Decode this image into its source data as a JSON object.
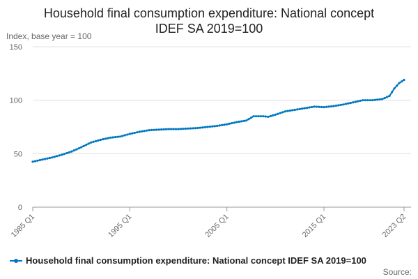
{
  "title_line1": "Household final consumption expenditure: National concept",
  "title_line2": "IDEF SA 2019=100",
  "ylabel": "Index, base year = 100",
  "source": "Source:",
  "legend": "Household final consumption expenditure: National concept IDEF SA 2019=100",
  "colors": {
    "series": "#0078bf",
    "grid": "#e0e0e0",
    "axis": "#999999"
  },
  "chart_data": {
    "type": "line",
    "title": "Household final consumption expenditure: National concept IDEF SA 2019=100",
    "ylabel": "Index, base year = 100",
    "xlabel": "",
    "ylim": [
      0,
      150
    ],
    "yticks": [
      0,
      50,
      100,
      150
    ],
    "xticks": [
      "1985 Q1",
      "1995 Q1",
      "2005 Q1",
      "2015 Q1",
      "2023 Q2"
    ],
    "grid": true,
    "legend_position": "bottom",
    "x_start": "1985 Q1",
    "x_end": "2023 Q2",
    "series": [
      {
        "name": "Household final consumption expenditure: National concept IDEF SA 2019=100",
        "anchors": [
          [
            "1985 Q1",
            42.5
          ],
          [
            "1986 Q1",
            44.5
          ],
          [
            "1987 Q1",
            46.5
          ],
          [
            "1988 Q1",
            49
          ],
          [
            "1989 Q1",
            52
          ],
          [
            "1990 Q1",
            56
          ],
          [
            "1991 Q1",
            60.5
          ],
          [
            "1992 Q1",
            63
          ],
          [
            "1993 Q1",
            65
          ],
          [
            "1994 Q1",
            66
          ],
          [
            "1995 Q1",
            68.5
          ],
          [
            "1996 Q1",
            70.5
          ],
          [
            "1997 Q1",
            72
          ],
          [
            "1998 Q1",
            72.5
          ],
          [
            "1999 Q1",
            73
          ],
          [
            "2000 Q1",
            73
          ],
          [
            "2001 Q1",
            73.5
          ],
          [
            "2002 Q1",
            74
          ],
          [
            "2003 Q1",
            75
          ],
          [
            "2004 Q1",
            76
          ],
          [
            "2005 Q1",
            77.5
          ],
          [
            "2006 Q1",
            79.5
          ],
          [
            "2007 Q1",
            81
          ],
          [
            "2007 Q4",
            85
          ],
          [
            "2008 Q4",
            85
          ],
          [
            "2009 Q2",
            84.5
          ],
          [
            "2010 Q1",
            86.5
          ],
          [
            "2011 Q1",
            89.5
          ],
          [
            "2012 Q1",
            91
          ],
          [
            "2013 Q1",
            92.5
          ],
          [
            "2014 Q1",
            94
          ],
          [
            "2015 Q1",
            93.5
          ],
          [
            "2016 Q1",
            94.5
          ],
          [
            "2017 Q1",
            96
          ],
          [
            "2018 Q1",
            98
          ],
          [
            "2019 Q1",
            100
          ],
          [
            "2020 Q1",
            100
          ],
          [
            "2021 Q1",
            101
          ],
          [
            "2021 Q4",
            104
          ],
          [
            "2022 Q2",
            111
          ],
          [
            "2022 Q4",
            116
          ],
          [
            "2023 Q2",
            119
          ]
        ]
      }
    ]
  }
}
